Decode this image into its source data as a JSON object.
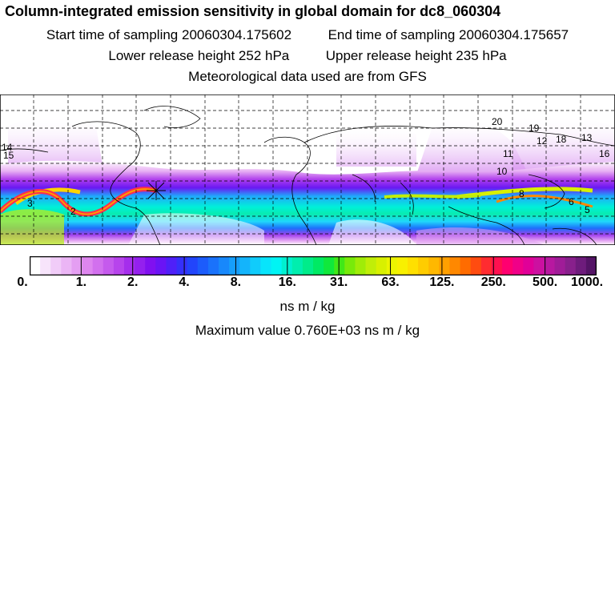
{
  "header": {
    "title": "Column-integrated emission sensitivity in global domain for dc8_060304",
    "start_label": "Start time of sampling",
    "start_value": "20060304.175602",
    "end_label": "End time of sampling",
    "end_value": "20060304.175657",
    "lower_label": "Lower release height",
    "lower_value": "252 hPa",
    "upper_label": "Upper release height",
    "upper_value": "235 hPa",
    "met_line": "Meteorological data used are from GFS"
  },
  "map": {
    "projection": "equirectangular",
    "grid": "dashed lat/lon graticule",
    "trajectory_labels": [
      "3",
      "2",
      "5",
      "6",
      "8",
      "10",
      "11",
      "12",
      "13",
      "14",
      "15",
      "16",
      "18",
      "19",
      "20"
    ]
  },
  "colorbar": {
    "tick_labels": [
      "0.",
      "1.",
      "2.",
      "4.",
      "8.",
      "16.",
      "31.",
      "63.",
      "125.",
      "250.",
      "500.",
      "1000."
    ],
    "colors": [
      "#ffffff",
      "#f7e4fb",
      "#f1ccf8",
      "#ebb5f5",
      "#e49ef2",
      "#de86ef",
      "#d270ee",
      "#c55aed",
      "#b744ec",
      "#a52eec",
      "#9420ee",
      "#8010f0",
      "#6a14f5",
      "#4f20f8",
      "#3530fa",
      "#2245fb",
      "#1c5cfb",
      "#1a72fb",
      "#1888fb",
      "#169efb",
      "#14b4fb",
      "#10ccfb",
      "#08e4fb",
      "#00f4f4",
      "#00f0d0",
      "#00eeae",
      "#00ec8a",
      "#00ea64",
      "#10e83c",
      "#40e818",
      "#78ea0a",
      "#a0ec08",
      "#c0ee08",
      "#d8f000",
      "#ecf400",
      "#f8f000",
      "#ffe000",
      "#ffcc00",
      "#ffb800",
      "#ffa000",
      "#ff8800",
      "#ff6c00",
      "#ff4c10",
      "#ff2c30",
      "#ff1050",
      "#ff0070",
      "#f00088",
      "#e00098",
      "#cc10a0",
      "#b818a0",
      "#a01c98",
      "#88208c",
      "#6e1c7c",
      "#541466"
    ],
    "units": "ns m / kg"
  },
  "footer": {
    "max_label": "Maximum value",
    "max_value": "0.760E+03",
    "max_units": "ns m / kg"
  }
}
